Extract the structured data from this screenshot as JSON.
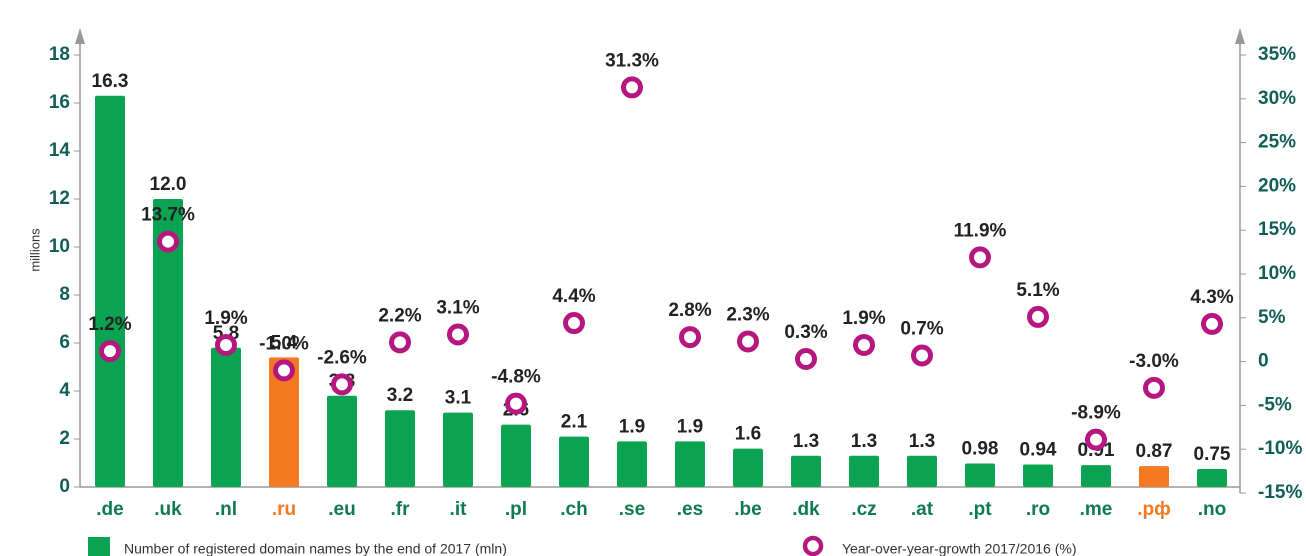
{
  "chart_data": {
    "type": "bar",
    "y_label": "millions",
    "categories": [
      ".de",
      ".uk",
      ".nl",
      ".ru",
      ".eu",
      ".fr",
      ".it",
      ".pl",
      ".ch",
      ".se",
      ".es",
      ".be",
      ".dk",
      ".cz",
      ".at",
      ".pt",
      ".ro",
      ".me",
      ".рф",
      ".no"
    ],
    "category_colors": [
      "#0e7a4f",
      "#0e7a4f",
      "#0e7a4f",
      "#f47920",
      "#0e7a4f",
      "#0e7a4f",
      "#0e7a4f",
      "#0e7a4f",
      "#0e7a4f",
      "#0e7a4f",
      "#0e7a4f",
      "#0e7a4f",
      "#0e7a4f",
      "#0e7a4f",
      "#0e7a4f",
      "#0e7a4f",
      "#0e7a4f",
      "#0e7a4f",
      "#f47920",
      "#0e7a4f"
    ],
    "series": [
      {
        "name": "Number of registered domain names by the end of 2017 (mln)",
        "type": "bar",
        "color": "#0aa352",
        "colors": [
          "#0aa352",
          "#0aa352",
          "#0aa352",
          "#f47920",
          "#0aa352",
          "#0aa352",
          "#0aa352",
          "#0aa352",
          "#0aa352",
          "#0aa352",
          "#0aa352",
          "#0aa352",
          "#0aa352",
          "#0aa352",
          "#0aa352",
          "#0aa352",
          "#0aa352",
          "#0aa352",
          "#f47920",
          "#0aa352"
        ],
        "values": [
          16.3,
          12.0,
          5.8,
          5.4,
          3.8,
          3.2,
          3.1,
          2.6,
          2.1,
          1.9,
          1.9,
          1.6,
          1.3,
          1.3,
          1.3,
          0.98,
          0.94,
          0.91,
          0.87,
          0.75
        ],
        "value_labels": [
          "16.3",
          "12.0",
          "5.8",
          "5.4",
          "3.8",
          "3.2",
          "3.1",
          "2.6",
          "2.1",
          "1.9",
          "1.9",
          "1.6",
          "1.3",
          "1.3",
          "1.3",
          "0.98",
          "0.94",
          "0.91",
          "0.87",
          "0.75"
        ]
      },
      {
        "name": "Year-over-year-growth 2017/2016 (%)",
        "type": "scatter",
        "axis": "y2",
        "color": "#b5177f",
        "values": [
          1.2,
          13.7,
          1.9,
          -1.0,
          -2.6,
          2.2,
          3.1,
          -4.8,
          4.4,
          31.3,
          2.8,
          2.3,
          0.3,
          1.9,
          0.7,
          11.9,
          5.1,
          -8.9,
          -3.0,
          4.3
        ],
        "value_labels": [
          "1.2%",
          "13.7%",
          "1.9%",
          "-1.0%",
          "-2.6%",
          "2.2%",
          "3.1%",
          "-4.8%",
          "4.4%",
          "31.3%",
          "2.8%",
          "2.3%",
          "0.3%",
          "1.9%",
          "0.7%",
          "11.9%",
          "5.1%",
          "-8.9%",
          "-3.0%",
          "4.3%"
        ]
      }
    ],
    "ylim": [
      0,
      18
    ],
    "yticks": [
      0,
      2,
      4,
      6,
      8,
      10,
      12,
      14,
      16,
      18
    ],
    "y2lim": [
      -15,
      35
    ],
    "y2ticks": [
      {
        "value": -15,
        "label": "-15%"
      },
      {
        "value": -10,
        "label": "-10%"
      },
      {
        "value": -5,
        "label": "-5%"
      },
      0,
      {
        "value": 5,
        "label": "5%"
      },
      {
        "value": 10,
        "label": "10%"
      },
      {
        "value": 15,
        "label": "15%"
      },
      {
        "value": 20,
        "label": "20%"
      },
      {
        "value": 25,
        "label": "25%"
      },
      {
        "value": 30,
        "label": "30%"
      },
      {
        "value": 35,
        "label": "35%"
      }
    ]
  }
}
